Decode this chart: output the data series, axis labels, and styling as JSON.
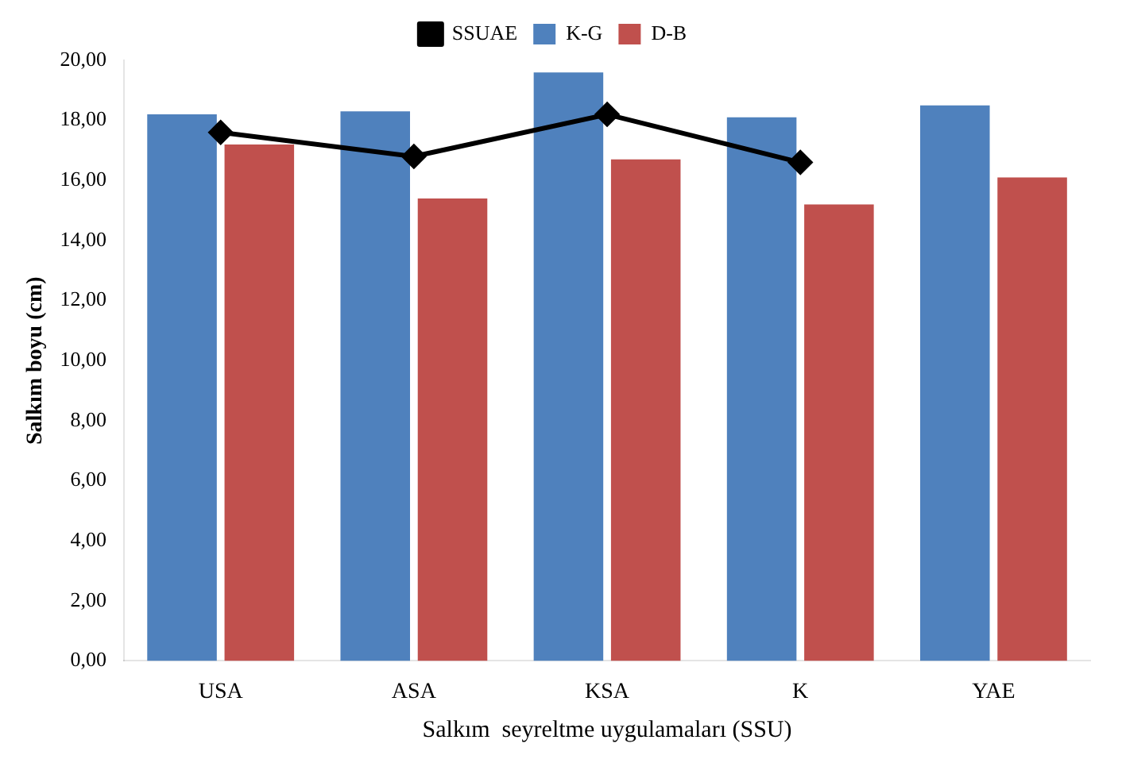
{
  "chart_data": {
    "type": "bar",
    "xlabel": "Salkım  seyreltme uygulamaları (SSU)",
    "ylabel": "Salkım boyu (cm)",
    "categories": [
      "USA",
      "ASA",
      "KSA",
      "K",
      "YAE"
    ],
    "series": [
      {
        "name": "K-G",
        "color": "#4f81bd",
        "values": [
          18.2,
          18.3,
          19.6,
          18.1,
          18.5
        ]
      },
      {
        "name": "D-B",
        "color": "#c0504d",
        "values": [
          17.2,
          15.4,
          16.7,
          15.2,
          16.1
        ]
      },
      {
        "name": "SSUAE",
        "type": "line",
        "color": "#000000",
        "values": [
          17.6,
          16.8,
          18.2,
          16.6,
          null
        ]
      }
    ],
    "ylim": [
      0,
      20
    ],
    "yticks": [
      {
        "value": 0,
        "label": "0,00"
      },
      {
        "value": 2,
        "label": "2,00"
      },
      {
        "value": 4,
        "label": "4,00"
      },
      {
        "value": 6,
        "label": "6,00"
      },
      {
        "value": 8,
        "label": "8,00"
      },
      {
        "value": 10,
        "label": "10,00"
      },
      {
        "value": 12,
        "label": "12,00"
      },
      {
        "value": 14,
        "label": "14,00"
      },
      {
        "value": 16,
        "label": "16,00"
      },
      {
        "value": 18,
        "label": "18,00"
      },
      {
        "value": 20,
        "label": "20,00"
      }
    ],
    "grid": false,
    "legend": "top",
    "marker": "diamond",
    "line_style": "solid"
  }
}
